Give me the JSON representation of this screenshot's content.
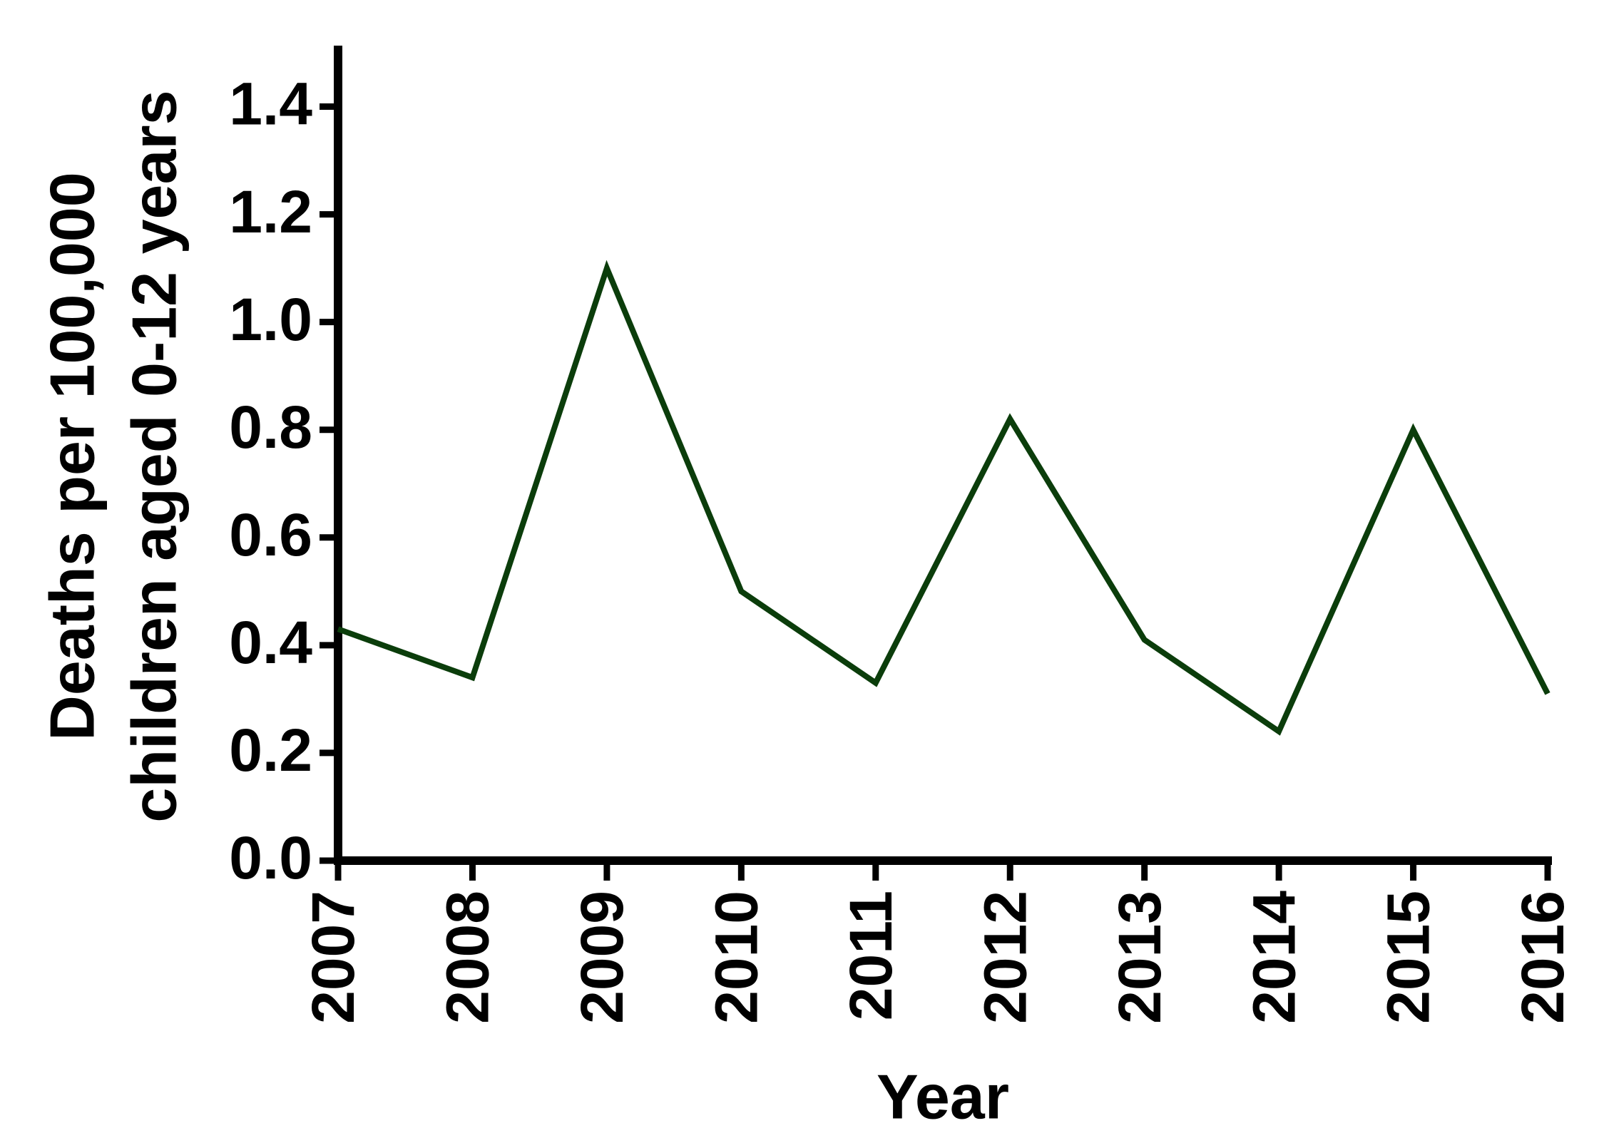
{
  "chart_data": {
    "type": "line",
    "ylabel": [
      "Deaths per 100,000",
      "children aged 0-12 years"
    ],
    "xlabel": "Year",
    "categories": [
      "2007",
      "2008",
      "2009",
      "2010",
      "2011",
      "2012",
      "2013",
      "2014",
      "2015",
      "2016"
    ],
    "series": [
      {
        "color": "#0b3d0b",
        "values": [
          0.43,
          0.34,
          1.1,
          0.5,
          0.33,
          0.82,
          0.41,
          0.24,
          0.8,
          0.31
        ]
      }
    ],
    "ylim": [
      0,
      1.5
    ],
    "yticks": [
      {
        "value": 0,
        "label": "0.0"
      },
      0.2,
      0.4,
      0.6,
      0.8,
      {
        "value": 1,
        "label": "1.0"
      },
      1.2,
      1.4
    ]
  }
}
